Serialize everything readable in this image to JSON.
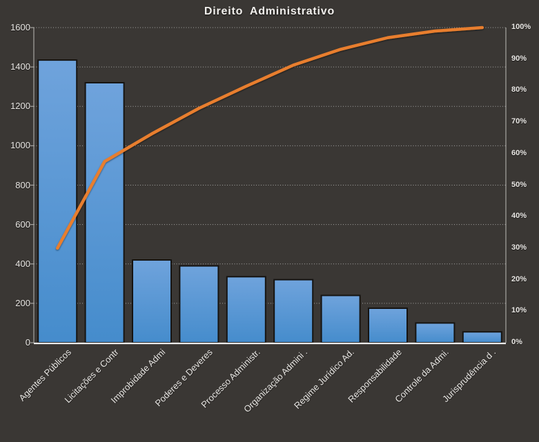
{
  "page": {
    "background": "#3A3734"
  },
  "chart": {
    "title": "Direito Administrativo"
  },
  "chart_data": {
    "type": "bar",
    "subtype": "pareto",
    "title": "Direito Administrativo",
    "categories": [
      "Agentes Públicos",
      "Licitações e Contr",
      "Improbidade Admi",
      "Poderes e Deveres",
      "Processo Administr.",
      "Organização Admini .",
      "Regime Jurídico Ad.",
      "Responsabilidade",
      "Controle da Admi.",
      "Jurisprudência d ."
    ],
    "series": [
      {
        "role": "bars",
        "axis": "left",
        "values": [
          1435,
          1320,
          420,
          390,
          335,
          320,
          240,
          175,
          100,
          55
        ]
      },
      {
        "role": "cumulative-line",
        "axis": "right",
        "values_pct": [
          30.0,
          57.5,
          66.3,
          74.4,
          81.4,
          88.1,
          93.1,
          96.8,
          98.9,
          100.0
        ]
      }
    ],
    "left_axis": {
      "min": 0,
      "max": 1600,
      "step": 200,
      "tick_labels": [
        "0",
        "200",
        "400",
        "600",
        "800",
        "1000",
        "1200",
        "1400",
        "1600"
      ]
    },
    "right_axis": {
      "min": 0,
      "max": 100,
      "step": 10,
      "tick_labels": [
        "0%",
        "10%",
        "20%",
        "30%",
        "40%",
        "50%",
        "60%",
        "70%",
        "80%",
        "90%",
        "100%"
      ]
    },
    "grid": {
      "horizontal": "dotted",
      "vertical": "none"
    },
    "legend_position": "none"
  },
  "colors": {
    "background": "#3A3734",
    "bar_gradient_top": "#6FA3DC",
    "bar_gradient_bottom": "#458CCC",
    "bar_border": "#161412",
    "line": "#E87E2E",
    "grid": "#CBCBCB",
    "zero_line": "#ECECEC",
    "plot_border": "#A8A6A3",
    "axis_text": "#E8E6E3",
    "title_text": "#F2F0ED"
  }
}
